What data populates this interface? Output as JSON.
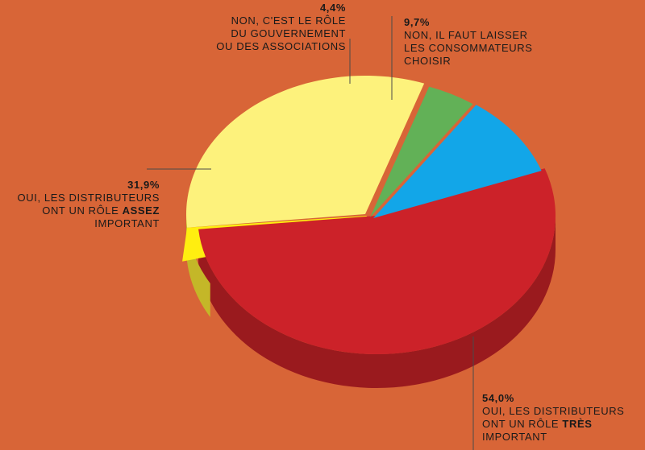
{
  "chart_data": {
    "type": "pie",
    "style": "3d-exploded",
    "title": "",
    "slices": [
      {
        "key": "tres",
        "value": 54.0,
        "value_label": "54,0%",
        "lines": [
          "Oui, les distributeurs",
          "ont un rôle ",
          "important"
        ],
        "emphasis": "très",
        "color": "#cc2229",
        "side_color": "#9a1a1e"
      },
      {
        "key": "assez",
        "value": 31.9,
        "value_label": "31,9%",
        "lines": [
          "Oui, les distributeurs",
          "ont un rôle ",
          "important"
        ],
        "emphasis": "assez",
        "color": "#fdf27c",
        "side_color": "#c4b728"
      },
      {
        "key": "gouv",
        "value": 4.4,
        "value_label": "4,4%",
        "lines": [
          "Non, c'est le rôle",
          "du gouvernement",
          "ou des associations"
        ],
        "emphasis": "",
        "color": "#62b157",
        "side_color": "#2f8a3c"
      },
      {
        "key": "conso",
        "value": 9.7,
        "value_label": "9,7%",
        "lines": [
          "Non, il faut laisser",
          "les consommateurs",
          "choisir"
        ],
        "emphasis": "",
        "color": "#12a6e8",
        "side_color": "#0a7ab0"
      }
    ]
  }
}
